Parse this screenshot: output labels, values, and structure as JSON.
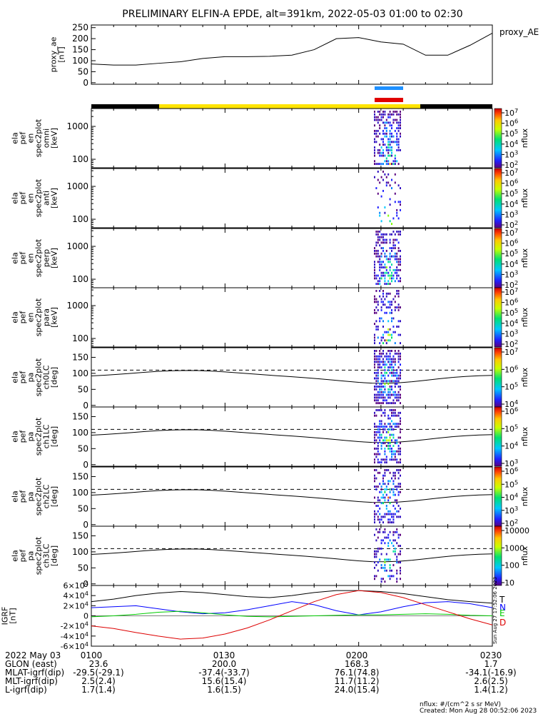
{
  "title": "PRELIMINARY ELFIN-A EPDE, alt=391km, 2022-05-03 01:00 to 02:30",
  "colors": {
    "axis": "#000000",
    "science_zone": "#ffe400",
    "night_bar": "#000000",
    "flag_blue": "#1e90ff",
    "flag_red": "#e00000",
    "T": "#000000",
    "N": "#0000ff",
    "E": "#00cc00",
    "D": "#dd0000"
  },
  "chart_data": [
    {
      "type": "line",
      "panel": "proxy_ae",
      "ylabel": "proxy_ae\n[nT]",
      "legend": "proxy_AE",
      "yticks": [
        0,
        50,
        100,
        150,
        200,
        250
      ],
      "ylim": [
        0,
        260
      ],
      "x_minutes": [
        0,
        5,
        10,
        15,
        20,
        25,
        30,
        35,
        40,
        45,
        50,
        55,
        60,
        65,
        70,
        75,
        80,
        85,
        90
      ],
      "values": [
        85,
        80,
        80,
        88,
        95,
        110,
        118,
        118,
        120,
        125,
        150,
        200,
        205,
        185,
        175,
        125,
        125,
        170,
        225
      ]
    },
    {
      "type": "heatmap",
      "panel": "en omni",
      "ylabel": "ela\npef\nen\nspec2plot\nomni\n[keV]",
      "yticks": [
        "100",
        "1000"
      ],
      "colorbar_label": "nflux",
      "colorbar_ticks": [
        "10^2",
        "10^3",
        "10^4",
        "10^5",
        "10^6",
        "10^7"
      ]
    },
    {
      "type": "heatmap",
      "panel": "en anti",
      "ylabel": "ela\npef\nen\nspec2plot\nanti\n[keV]",
      "yticks": [
        "100",
        "1000"
      ],
      "colorbar_label": "nflux",
      "colorbar_ticks": [
        "10^2",
        "10^3",
        "10^4",
        "10^5",
        "10^6",
        "10^7"
      ]
    },
    {
      "type": "heatmap",
      "panel": "en perp",
      "ylabel": "ela\npef\nen\nspec2plot\nperp\n[keV]",
      "yticks": [
        "100",
        "1000"
      ],
      "colorbar_label": "nflux",
      "colorbar_ticks": [
        "10^2",
        "10^3",
        "10^4",
        "10^5",
        "10^6",
        "10^7"
      ]
    },
    {
      "type": "heatmap",
      "panel": "en para",
      "ylabel": "ela\npef\nen\nspec2plot\npara\n[keV]",
      "yticks": [
        "100",
        "1000"
      ],
      "colorbar_label": "nflux",
      "colorbar_ticks": [
        "10^2",
        "10^3",
        "10^4",
        "10^5",
        "10^6",
        "10^7"
      ]
    },
    {
      "type": "heatmap",
      "panel": "pa ch0LC",
      "ylabel": "ela\npef\npa\nspec2plot\nch0LC\n[deg]",
      "yticks": [
        "0",
        "50",
        "100",
        "150"
      ],
      "colorbar_label": "nflux",
      "colorbar_ticks": [
        "10^4",
        "10^5",
        "10^6",
        "10^7"
      ]
    },
    {
      "type": "heatmap",
      "panel": "pa ch1LC",
      "ylabel": "ela\npef\npa\nspec2plot\nch1LC\n[deg]",
      "yticks": [
        "0",
        "50",
        "100",
        "150"
      ],
      "colorbar_label": "nflux",
      "colorbar_ticks": [
        "10^3",
        "10^4",
        "10^5",
        "10^6"
      ]
    },
    {
      "type": "heatmap",
      "panel": "pa ch2LC",
      "ylabel": "ela\npef\npa\nspec2plot\nch2LC\n[deg]",
      "yticks": [
        "0",
        "50",
        "100",
        "150"
      ],
      "colorbar_label": "nflux",
      "colorbar_ticks": [
        "10^2",
        "10^3",
        "10^4",
        "10^5",
        "10^6"
      ]
    },
    {
      "type": "heatmap",
      "panel": "pa ch3LC",
      "ylabel": "ela\npef\npa\nspec2plot\nch3LC\n[deg]",
      "yticks": [
        "0",
        "50",
        "100",
        "150"
      ],
      "colorbar_label": "nflux",
      "colorbar_ticks": [
        "10",
        "100",
        "1000",
        "10000"
      ]
    },
    {
      "type": "line",
      "panel": "IGRF",
      "ylabel": "IGRF\n[nT]",
      "yticks": [
        "-6×10^4",
        "-4×10^4",
        "-2×10^4",
        "0",
        "2×10^4",
        "4×10^4",
        "6×10^4"
      ],
      "ylim": [
        -60000,
        60000
      ],
      "side_stamp": "Sun Aug 27 17:52:06 2023",
      "legend": [
        "T",
        "N",
        "E",
        "D"
      ],
      "x_minutes": [
        0,
        5,
        10,
        15,
        20,
        25,
        30,
        35,
        40,
        45,
        50,
        55,
        60,
        65,
        70,
        75,
        80,
        85,
        90
      ],
      "series": [
        {
          "name": "T",
          "values": [
            28000,
            33000,
            40000,
            45000,
            48000,
            46000,
            42000,
            38000,
            36000,
            40000,
            46000,
            50000,
            50000,
            48000,
            44000,
            38000,
            32000,
            28000,
            25000
          ]
        },
        {
          "name": "N",
          "values": [
            16000,
            18000,
            20000,
            14000,
            8000,
            4000,
            6000,
            12000,
            20000,
            28000,
            22000,
            10000,
            2000,
            8000,
            18000,
            26000,
            28000,
            24000,
            16000
          ]
        },
        {
          "name": "E",
          "values": [
            -2000,
            0,
            3000,
            7000,
            9000,
            6000,
            2000,
            -1000,
            -2000,
            -1000,
            0,
            1000,
            2000,
            2000,
            3000,
            4000,
            3000,
            1000,
            0
          ]
        },
        {
          "name": "D",
          "values": [
            -20000,
            -25000,
            -33000,
            -40000,
            -46000,
            -44000,
            -36000,
            -24000,
            -8000,
            10000,
            28000,
            42000,
            50000,
            46000,
            36000,
            22000,
            8000,
            -6000,
            -18000
          ]
        }
      ]
    }
  ],
  "footer": {
    "date_label": "2022 May 03",
    "times": [
      "0100",
      "0130",
      "0200",
      "0230"
    ],
    "rows": [
      {
        "label": "GLON (east)",
        "values": [
          "23.6",
          "200.0",
          "168.3",
          "1.7"
        ]
      },
      {
        "label": "MLAT-igrf(dip)",
        "values": [
          "-29.5(-29.1)",
          "-37.4(-33.7)",
          "76.1(74.8)",
          "-34.1(-16.9)"
        ]
      },
      {
        "label": "MLT-igrf(dip)",
        "values": [
          "2.5(2.4)",
          "15.6(15.4)",
          "11.7(11.2)",
          "2.6(2.5)"
        ]
      },
      {
        "label": "L-igrf(dip)",
        "values": [
          "1.7(1.4)",
          "1.6(1.5)",
          "24.0(15.4)",
          "1.4(1.2)"
        ]
      }
    ],
    "units_note": "nflux: #/(cm^2 s sr MeV)",
    "created": "Created: Mon Aug 28 00:52:06 2023"
  }
}
